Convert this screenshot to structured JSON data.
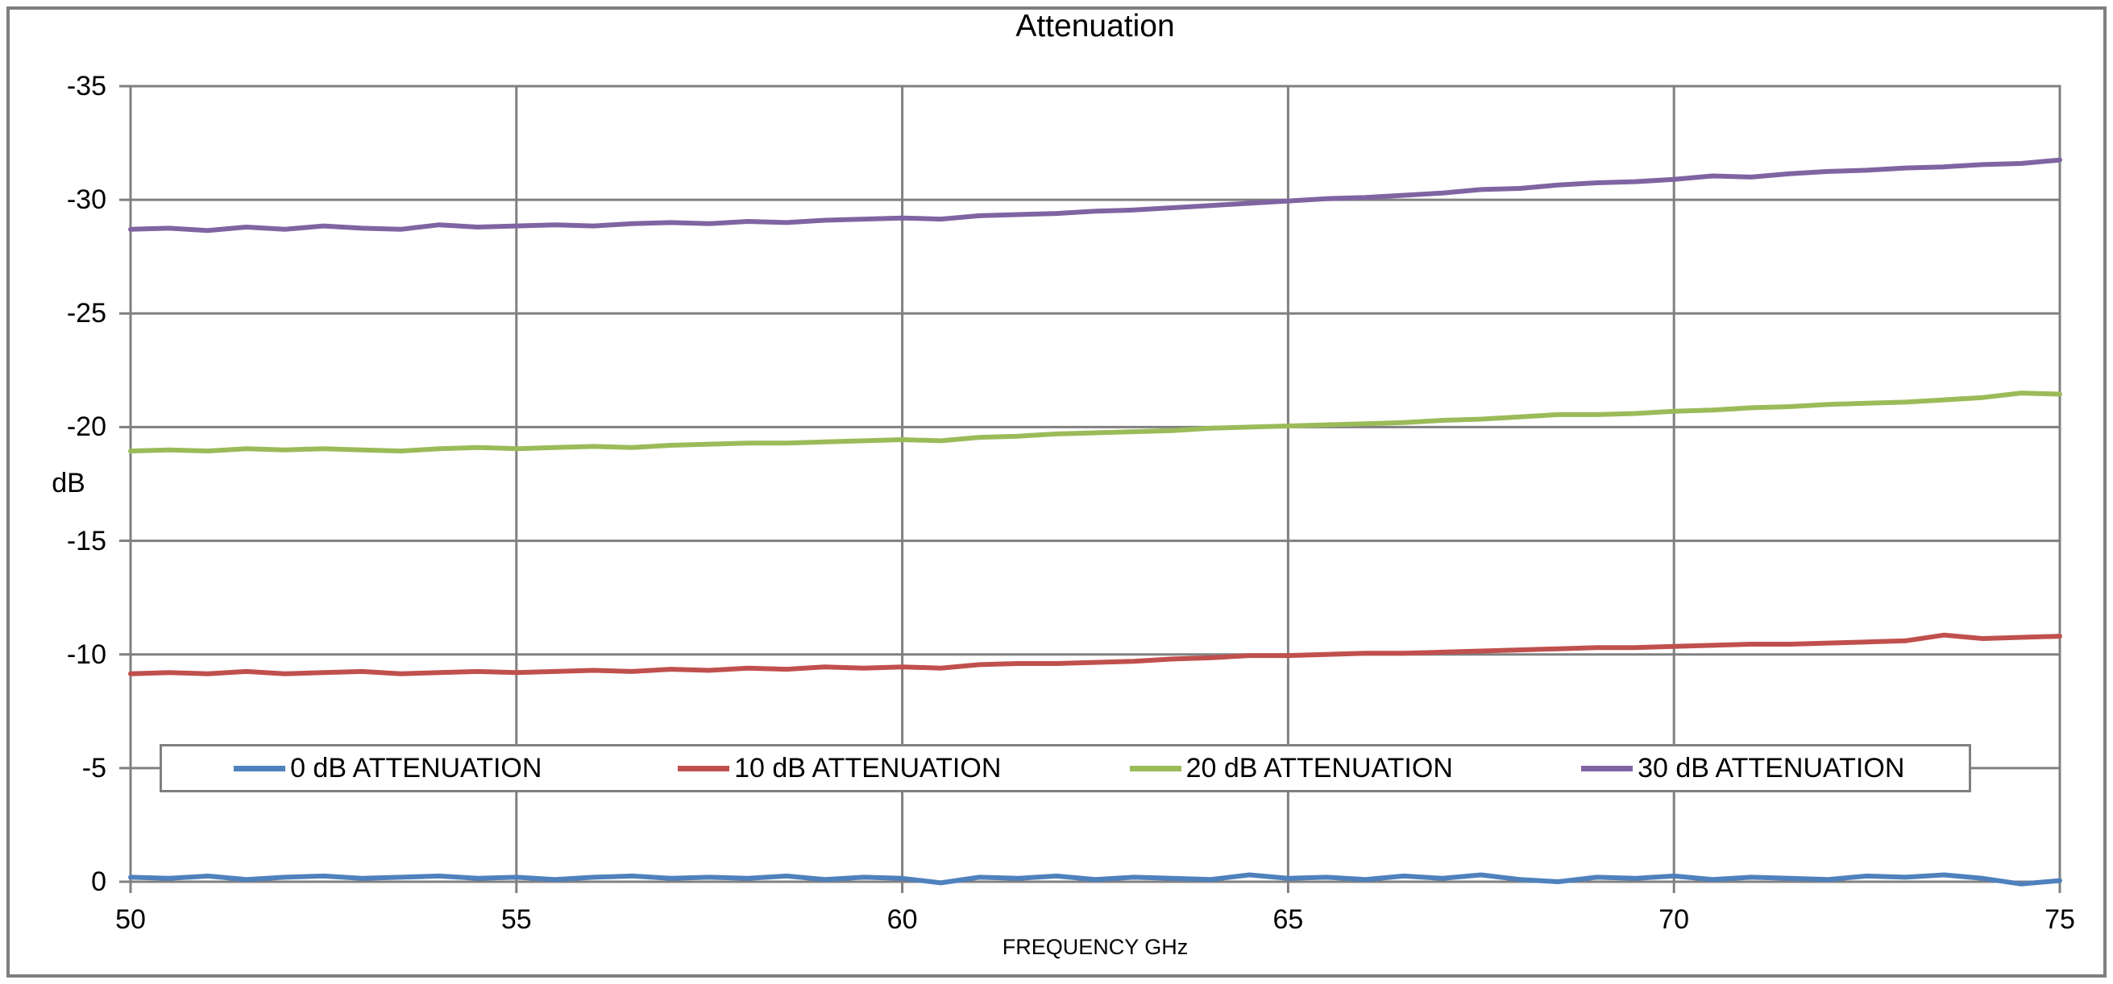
{
  "chart": {
    "title": "Attenuation",
    "y_axis_label": "dB",
    "x_axis_label": "FREQUENCY GHz"
  },
  "colors": {
    "gridline": "#808080",
    "plot_border": "#808080",
    "outer_frame": "#7f7f7f",
    "text": "#000000",
    "background": "#ffffff"
  },
  "chart_data": {
    "type": "line",
    "title": "Attenuation",
    "xlabel": "FREQUENCY GHz",
    "ylabel": "dB",
    "x_range": [
      50,
      75
    ],
    "y_range": [
      -35,
      0
    ],
    "y_axis_reversed_top_is_negative": true,
    "grid": true,
    "legend_position": "inside-bottom-horizontal",
    "x_ticks": [
      50,
      55,
      60,
      65,
      70,
      75
    ],
    "y_ticks": [
      -35,
      -30,
      -25,
      -20,
      -15,
      -10,
      -5,
      0
    ],
    "x": [
      50,
      50.5,
      51,
      51.5,
      52,
      52.5,
      53,
      53.5,
      54,
      54.5,
      55,
      55.5,
      56,
      56.5,
      57,
      57.5,
      58,
      58.5,
      59,
      59.5,
      60,
      60.5,
      61,
      61.5,
      62,
      62.5,
      63,
      63.5,
      64,
      64.5,
      65,
      65.5,
      66,
      66.5,
      67,
      67.5,
      68,
      68.5,
      69,
      69.5,
      70,
      70.5,
      71,
      71.5,
      72,
      72.5,
      73,
      73.5,
      74,
      74.5,
      75
    ],
    "series": [
      {
        "name": "0 dB ATTENUATION",
        "color": "#4F81BD",
        "values": [
          -0.2,
          -0.15,
          -0.25,
          -0.1,
          -0.2,
          -0.25,
          -0.15,
          -0.2,
          -0.25,
          -0.15,
          -0.2,
          -0.1,
          -0.2,
          -0.25,
          -0.15,
          -0.2,
          -0.15,
          -0.25,
          -0.1,
          -0.2,
          -0.15,
          0.05,
          -0.2,
          -0.15,
          -0.25,
          -0.1,
          -0.2,
          -0.15,
          -0.1,
          -0.3,
          -0.15,
          -0.2,
          -0.1,
          -0.25,
          -0.15,
          -0.3,
          -0.1,
          0,
          -0.2,
          -0.15,
          -0.25,
          -0.1,
          -0.2,
          -0.15,
          -0.1,
          -0.25,
          -0.2,
          -0.3,
          -0.15,
          0.1,
          -0.05
        ]
      },
      {
        "name": "10 dB ATTENUATION",
        "color": "#C0504D",
        "values": [
          -9.15,
          -9.2,
          -9.15,
          -9.25,
          -9.15,
          -9.2,
          -9.25,
          -9.15,
          -9.2,
          -9.25,
          -9.2,
          -9.25,
          -9.3,
          -9.25,
          -9.35,
          -9.3,
          -9.4,
          -9.35,
          -9.45,
          -9.4,
          -9.45,
          -9.4,
          -9.55,
          -9.6,
          -9.6,
          -9.65,
          -9.7,
          -9.8,
          -9.85,
          -9.95,
          -9.95,
          -10,
          -10.05,
          -10.05,
          -10.1,
          -10.15,
          -10.2,
          -10.25,
          -10.3,
          -10.3,
          -10.35,
          -10.4,
          -10.45,
          -10.45,
          -10.5,
          -10.55,
          -10.6,
          -10.85,
          -10.7,
          -10.75,
          -10.8
        ]
      },
      {
        "name": "20 dB ATTENUATION",
        "color": "#9BBB59",
        "values": [
          -18.95,
          -19,
          -18.95,
          -19.05,
          -19,
          -19.05,
          -19,
          -18.95,
          -19.05,
          -19.1,
          -19.05,
          -19.1,
          -19.15,
          -19.1,
          -19.2,
          -19.25,
          -19.3,
          -19.3,
          -19.35,
          -19.4,
          -19.45,
          -19.4,
          -19.55,
          -19.6,
          -19.7,
          -19.75,
          -19.8,
          -19.85,
          -19.95,
          -20,
          -20.05,
          -20.1,
          -20.15,
          -20.2,
          -20.3,
          -20.35,
          -20.45,
          -20.55,
          -20.55,
          -20.6,
          -20.7,
          -20.75,
          -20.85,
          -20.9,
          -21,
          -21.05,
          -21.1,
          -21.2,
          -21.3,
          -21.5,
          -21.45
        ]
      },
      {
        "name": "30 dB ATTENUATION",
        "color": "#8064A2",
        "values": [
          -28.7,
          -28.75,
          -28.65,
          -28.8,
          -28.7,
          -28.85,
          -28.75,
          -28.7,
          -28.9,
          -28.8,
          -28.85,
          -28.9,
          -28.85,
          -28.95,
          -29,
          -28.95,
          -29.05,
          -29,
          -29.1,
          -29.15,
          -29.2,
          -29.15,
          -29.3,
          -29.35,
          -29.4,
          -29.5,
          -29.55,
          -29.65,
          -29.75,
          -29.85,
          -29.95,
          -30.05,
          -30.1,
          -30.2,
          -30.3,
          -30.45,
          -30.5,
          -30.65,
          -30.75,
          -30.8,
          -30.9,
          -31.05,
          -31,
          -31.15,
          -31.25,
          -31.3,
          -31.4,
          -31.45,
          -31.55,
          -31.6,
          -31.75
        ]
      }
    ]
  }
}
